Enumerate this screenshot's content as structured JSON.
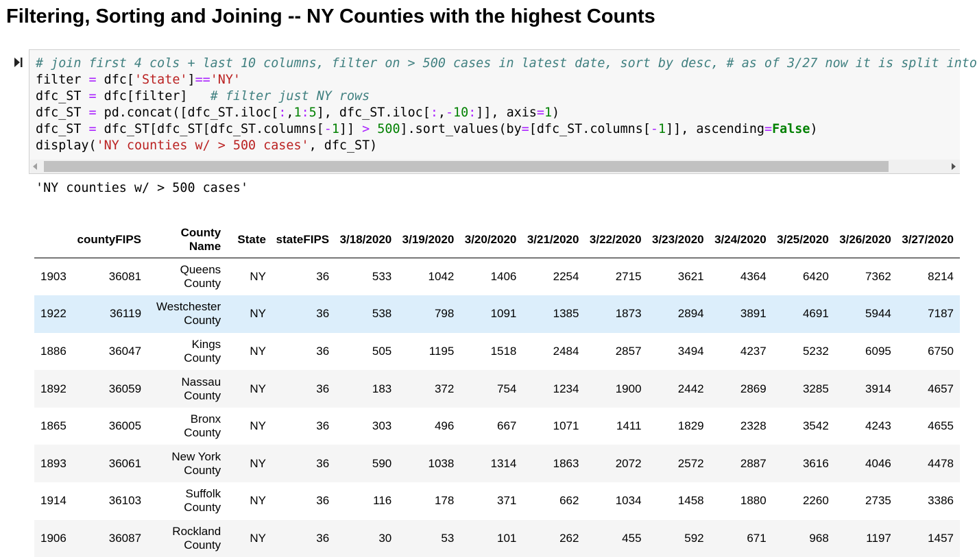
{
  "heading": "Filtering, Sorting and Joining -- NY Counties with the highest Counts",
  "code_lines": [
    "# join first 4 cols + last 10 columns, filter on > 500 cases in latest date, sort by desc, # as of 3/27 now it is split into",
    "filter = dfc['State']=='NY'",
    "dfc_ST = dfc[filter]   # filter just NY rows",
    "dfc_ST = pd.concat([dfc_ST.iloc[:,1:5], dfc_ST.iloc[:,-10:]], axis=1)",
    "dfc_ST = dfc_ST[dfc_ST[dfc_ST.columns[-1]] > 500].sort_values(by=[dfc_ST.columns[-1]], ascending=False)",
    "display('NY counties w/ > 500 cases', dfc_ST)"
  ],
  "output_text": "'NY counties w/ > 500 cases'",
  "table": {
    "columns": [
      "",
      "countyFIPS",
      "County Name",
      "State",
      "stateFIPS",
      "3/18/2020",
      "3/19/2020",
      "3/20/2020",
      "3/21/2020",
      "3/22/2020",
      "3/23/2020",
      "3/24/2020",
      "3/25/2020",
      "3/26/2020",
      "3/27/2020"
    ],
    "rows": [
      [
        "1903",
        "36081",
        "Queens County",
        "NY",
        "36",
        "533",
        "1042",
        "1406",
        "2254",
        "2715",
        "3621",
        "4364",
        "6420",
        "7362",
        "8214"
      ],
      [
        "1922",
        "36119",
        "Westchester County",
        "NY",
        "36",
        "538",
        "798",
        "1091",
        "1385",
        "1873",
        "2894",
        "3891",
        "4691",
        "5944",
        "7187"
      ],
      [
        "1886",
        "36047",
        "Kings County",
        "NY",
        "36",
        "505",
        "1195",
        "1518",
        "2484",
        "2857",
        "3494",
        "4237",
        "5232",
        "6095",
        "6750"
      ],
      [
        "1892",
        "36059",
        "Nassau County",
        "NY",
        "36",
        "183",
        "372",
        "754",
        "1234",
        "1900",
        "2442",
        "2869",
        "3285",
        "3914",
        "4657"
      ],
      [
        "1865",
        "36005",
        "Bronx County",
        "NY",
        "36",
        "303",
        "496",
        "667",
        "1071",
        "1411",
        "1829",
        "2328",
        "3542",
        "4243",
        "4655"
      ],
      [
        "1893",
        "36061",
        "New York County",
        "NY",
        "36",
        "590",
        "1038",
        "1314",
        "1863",
        "2072",
        "2572",
        "2887",
        "3616",
        "4046",
        "4478"
      ],
      [
        "1914",
        "36103",
        "Suffolk County",
        "NY",
        "36",
        "116",
        "178",
        "371",
        "662",
        "1034",
        "1458",
        "1880",
        "2260",
        "2735",
        "3386"
      ],
      [
        "1906",
        "36087",
        "Rockland County",
        "NY",
        "36",
        "30",
        "53",
        "101",
        "262",
        "455",
        "592",
        "671",
        "968",
        "1197",
        "1457"
      ]
    ],
    "highlighted_row": 1
  },
  "icons": {
    "run": "run-cell-icon",
    "scroll_left": "scroll-left-arrow-icon",
    "scroll_right": "scroll-right-arrow-icon"
  }
}
